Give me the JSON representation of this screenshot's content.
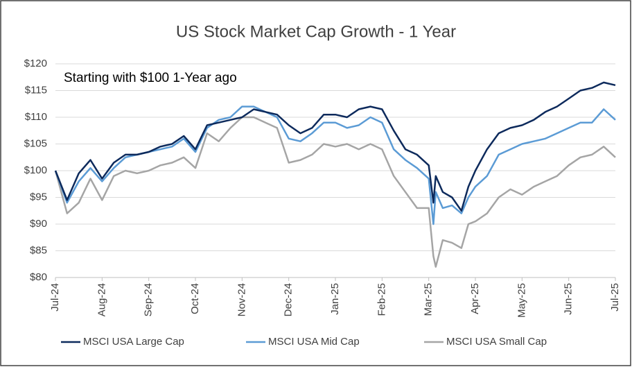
{
  "chart_data": {
    "type": "line",
    "title": "US Stock Market Cap Growth - 1 Year",
    "annotation": "Starting with $100  1-Year ago",
    "x": [
      0,
      0.25,
      0.5,
      0.75,
      1,
      1.25,
      1.5,
      1.75,
      2,
      2.25,
      2.5,
      2.75,
      3,
      3.25,
      3.5,
      3.75,
      4,
      4.25,
      4.5,
      4.75,
      5,
      5.25,
      5.5,
      5.75,
      6,
      6.25,
      6.5,
      6.75,
      7,
      7.25,
      7.5,
      7.75,
      8,
      8.1,
      8.15,
      8.3,
      8.5,
      8.7,
      8.85,
      9,
      9.25,
      9.5,
      9.75,
      10,
      10.25,
      10.5,
      10.75,
      11,
      11.25,
      11.5,
      11.75,
      12
    ],
    "xlim": [
      0,
      12
    ],
    "xticks": [
      {
        "value": 0,
        "label": "Jul-24"
      },
      {
        "value": 1,
        "label": "Aug-24"
      },
      {
        "value": 2,
        "label": "Sep-24"
      },
      {
        "value": 3,
        "label": "Oct-24"
      },
      {
        "value": 4,
        "label": "Nov-24"
      },
      {
        "value": 5,
        "label": "Dec-24"
      },
      {
        "value": 6,
        "label": "Jan-25"
      },
      {
        "value": 7,
        "label": "Feb-25"
      },
      {
        "value": 8,
        "label": "Mar-25"
      },
      {
        "value": 9,
        "label": "Apr-25"
      },
      {
        "value": 10,
        "label": "May-25"
      },
      {
        "value": 11,
        "label": "Jun-25"
      },
      {
        "value": 12,
        "label": "Jul-25"
      }
    ],
    "ylim": [
      80,
      120
    ],
    "yticks": [
      {
        "value": 80,
        "label": "$80"
      },
      {
        "value": 85,
        "label": "$85"
      },
      {
        "value": 90,
        "label": "$90"
      },
      {
        "value": 95,
        "label": "$95"
      },
      {
        "value": 100,
        "label": "$100"
      },
      {
        "value": 105,
        "label": "$105"
      },
      {
        "value": 110,
        "label": "$110"
      },
      {
        "value": 115,
        "label": "$115"
      },
      {
        "value": 120,
        "label": "$120"
      }
    ],
    "grid": true,
    "legend": "bottom",
    "series": [
      {
        "name": "MSCI USA Large Cap",
        "color": "#0d2a5c",
        "values": [
          100,
          94.5,
          99.5,
          102,
          98.5,
          101.5,
          103,
          103,
          103.5,
          104.5,
          105,
          106.5,
          104,
          108.5,
          109,
          109.5,
          110,
          111.5,
          111,
          110.5,
          108.5,
          107,
          108,
          110.5,
          110.5,
          110,
          111.5,
          112,
          111.5,
          107.5,
          104,
          103,
          101,
          94,
          99,
          96,
          95,
          92.5,
          97,
          100,
          104,
          107,
          108,
          108.5,
          109.5,
          111,
          112,
          113.5,
          115,
          115.5,
          116.5,
          116
        ]
      },
      {
        "name": "MSCI USA Mid Cap",
        "color": "#5b9bd5",
        "values": [
          100,
          94,
          98,
          100.5,
          98,
          100.5,
          102.5,
          103,
          103.5,
          104,
          104.5,
          106,
          103.5,
          108,
          109.5,
          110,
          112,
          112,
          111,
          110,
          106,
          105.5,
          107,
          109,
          109,
          108,
          108.5,
          110,
          109,
          104,
          102,
          100.5,
          98.5,
          90,
          96,
          93,
          93.5,
          92,
          95,
          97,
          99,
          103,
          104,
          105,
          105.5,
          106,
          107,
          108,
          109,
          109,
          111.5,
          109.5
        ]
      },
      {
        "name": "MSCI USA Small Cap",
        "color": "#a5a5a5",
        "values": [
          100,
          92,
          94,
          98.5,
          94.5,
          99,
          100,
          99.5,
          100,
          101,
          101.5,
          102.5,
          100.5,
          107,
          105.5,
          108,
          110,
          110,
          109,
          108,
          101.5,
          102,
          103,
          105,
          104.5,
          105,
          104,
          105,
          104,
          99,
          96,
          93,
          93,
          84,
          82,
          87,
          86.5,
          85.5,
          90,
          90.5,
          92,
          95,
          96.5,
          95.5,
          97,
          98,
          99,
          101,
          102.5,
          103,
          104.5,
          102.5
        ]
      }
    ]
  }
}
